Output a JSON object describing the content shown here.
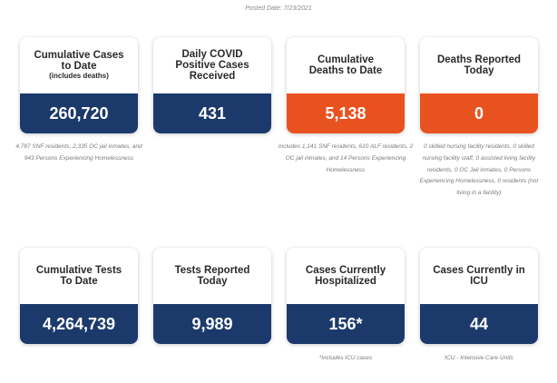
{
  "posted_date": "Posted Date: 7/23/2021",
  "colors": {
    "navy": "#1b3a6b",
    "orange": "#e8521f"
  },
  "cards": [
    {
      "title": "Cumulative Cases to Date",
      "subtitle": "(includes deaths)",
      "value": "260,720",
      "color": "navy",
      "note": "4,787 SNF residents, 2,335 OC jail inmates, and 943 Persons Experiencing Homelessness"
    },
    {
      "title": "Daily COVID Positive Cases Received",
      "subtitle": "",
      "value": "431",
      "color": "navy",
      "note": ""
    },
    {
      "title": "Cumulative Deaths to Date",
      "subtitle": "",
      "value": "5,138",
      "color": "orange",
      "note": "Includes 1,141 SNF residents, 610 ALF residents, 2 OC jail inmates, and 14 Persons Experiencing Homelessness"
    },
    {
      "title": "Deaths Reported Today",
      "subtitle": "",
      "value": "0",
      "color": "orange",
      "note": "0 skilled nursing facility residents, 0 skilled nursing facility staff, 0 assisted living facility residents, 0 OC Jail inmates, 0 Persons Experiencing Homelessness, 0 residents (not living in a facility)"
    },
    {
      "title": "Cumulative Tests To Date",
      "subtitle": "",
      "value": "4,264,739",
      "color": "navy",
      "note": ""
    },
    {
      "title": "Tests Reported Today",
      "subtitle": "",
      "value": "9,989",
      "color": "navy",
      "note": ""
    },
    {
      "title": "Cases Currently Hospitalized",
      "subtitle": "",
      "value": "156*",
      "color": "navy",
      "note": "*Includes ICU cases"
    },
    {
      "title": "Cases Currently in ICU",
      "subtitle": "",
      "value": "44",
      "color": "navy",
      "note": "ICU - Intensive Care Units"
    }
  ]
}
